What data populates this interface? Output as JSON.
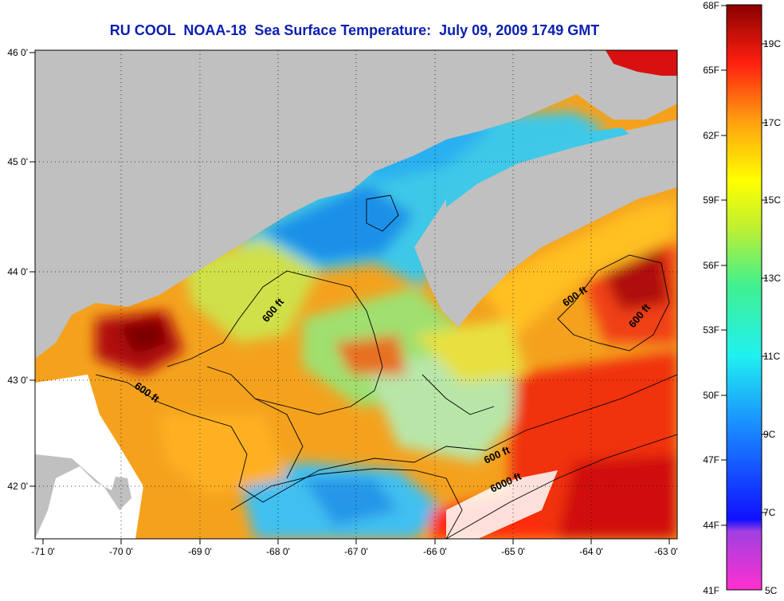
{
  "title": "RU COOL  NOAA-18  Sea Surface Temperature:  July 09, 2009 1749 GMT",
  "longitude_ticks": [
    "-71 0'",
    "-70 0'",
    "-69 0'",
    "-68 0'",
    "-67 0'",
    "-66 0'",
    "-65 0'",
    "-64 0'",
    "-63 0'"
  ],
  "latitude_ticks": [
    "46 0'",
    "45 0'",
    "44 0'",
    "43 0'",
    "42 0'"
  ],
  "contour_labels": [
    "600 ft",
    "600 ft",
    "600 ft",
    "600 ft",
    "600 ft",
    "6000 ft"
  ],
  "colorbar": {
    "fahrenheit_labels": [
      "68F",
      "65F",
      "62F",
      "59F",
      "56F",
      "53F",
      "50F",
      "47F",
      "44F",
      "41F"
    ],
    "celsius_labels": [
      "19C",
      "17C",
      "15C",
      "13C",
      "11C",
      "9C",
      "7C",
      "5C"
    ]
  },
  "colors": {
    "land": "#c0c0c0",
    "title": "#0a1fb0",
    "warm": "#d01010",
    "cool": "#28b4f0"
  }
}
